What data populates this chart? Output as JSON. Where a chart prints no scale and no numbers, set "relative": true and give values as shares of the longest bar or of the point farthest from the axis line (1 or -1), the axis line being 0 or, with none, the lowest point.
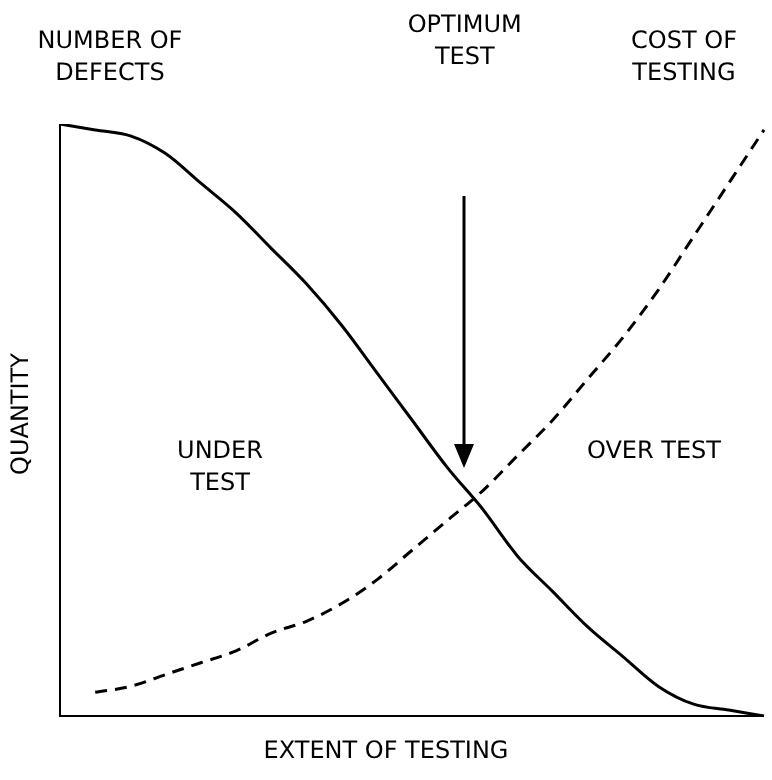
{
  "chart_data": {
    "type": "line",
    "relative": true,
    "xlabel": "EXTENT OF TESTING",
    "ylabel": "QUANTITY",
    "categories": [
      null,
      null,
      null,
      null,
      null,
      null,
      null,
      null,
      null,
      null,
      null,
      null,
      null,
      null,
      null,
      null,
      null,
      null,
      null,
      null,
      null
    ],
    "series": [
      {
        "name": "NUMBER OF DEFECTS",
        "color": "#000000",
        "line_style": "solid",
        "values": [
          1.0,
          0.99,
          0.98,
          0.95,
          0.9,
          0.85,
          0.79,
          0.73,
          0.66,
          0.58,
          0.5,
          0.42,
          0.35,
          0.27,
          0.21,
          0.15,
          0.1,
          0.05,
          0.02,
          0.01,
          0.0
        ]
      },
      {
        "name": "COST OF TESTING",
        "color": "#000000",
        "line_style": "dashed",
        "values": [
          null,
          0.04,
          0.05,
          0.07,
          0.09,
          0.11,
          0.14,
          0.16,
          0.19,
          0.23,
          0.28,
          0.33,
          0.38,
          0.44,
          0.5,
          0.57,
          0.64,
          0.72,
          0.81,
          0.9,
          0.99
        ]
      }
    ],
    "annotations": [
      "OPTIMUM TEST",
      "UNDER TEST",
      "OVER TEST"
    ],
    "marker": "none",
    "legend": false
  }
}
